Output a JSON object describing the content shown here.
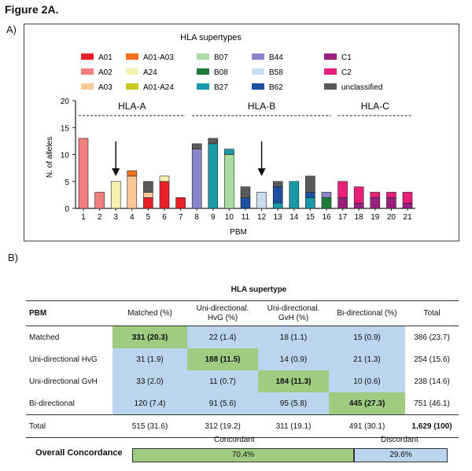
{
  "figure_title": "Figure 2A.",
  "panel_a_label": "A)",
  "panel_b_label": "B)",
  "colors": {
    "A01": "#e8202a",
    "A02": "#f08080",
    "A03": "#fac896",
    "A01-A03": "#f07020",
    "A24": "#f6f0b0",
    "A01-A24": "#c8c820",
    "B07": "#a8dca0",
    "B08": "#1f7a3a",
    "B27": "#1a9aa8",
    "B44": "#8a84c8",
    "B58": "#c8def0",
    "B62": "#1f4fa0",
    "C1": "#9a2080",
    "C2": "#e8207a",
    "unclassified": "#5a5a5a"
  },
  "chart_data": {
    "type": "stacked-bar",
    "legend_title": "HLA supertypes",
    "legend": [
      [
        "A01",
        "A02",
        "A03"
      ],
      [
        "A01-A03",
        "A24",
        "A01-A24"
      ],
      [
        "B07",
        "B08",
        "B27"
      ],
      [
        "B44",
        "B58",
        "B62"
      ],
      [
        "C1",
        "C2",
        "unclassified"
      ]
    ],
    "xlabel": "PBM",
    "ylabel": "N. of alleles",
    "ylim": [
      0,
      20
    ],
    "yticks": [
      0,
      5,
      10,
      15,
      20
    ],
    "groups": [
      {
        "label": "HLA-A",
        "from": 1,
        "to": 7
      },
      {
        "label": "HLA-B",
        "from": 8,
        "to": 16
      },
      {
        "label": "HLA-C",
        "from": 17,
        "to": 21
      }
    ],
    "arrows": [
      3,
      12
    ],
    "bars": [
      {
        "x": "1",
        "stack": [
          [
            "A02",
            13
          ]
        ]
      },
      {
        "x": "2",
        "stack": [
          [
            "A02",
            3
          ]
        ]
      },
      {
        "x": "3",
        "stack": [
          [
            "A24",
            5
          ]
        ]
      },
      {
        "x": "4",
        "stack": [
          [
            "A03",
            6
          ],
          [
            "A01-A03",
            1
          ]
        ]
      },
      {
        "x": "5",
        "stack": [
          [
            "A01",
            2
          ],
          [
            "A03",
            1
          ],
          [
            "unclassified",
            2
          ]
        ]
      },
      {
        "x": "6",
        "stack": [
          [
            "A01",
            5
          ],
          [
            "A24",
            1
          ]
        ]
      },
      {
        "x": "7",
        "stack": [
          [
            "A01",
            2
          ]
        ]
      },
      {
        "x": "8",
        "stack": [
          [
            "B44",
            11
          ],
          [
            "unclassified",
            1
          ]
        ]
      },
      {
        "x": "9",
        "stack": [
          [
            "B27",
            12
          ],
          [
            "unclassified",
            1
          ]
        ]
      },
      {
        "x": "10",
        "stack": [
          [
            "B07",
            10
          ],
          [
            "B27",
            1
          ]
        ]
      },
      {
        "x": "11",
        "stack": [
          [
            "B62",
            2
          ],
          [
            "unclassified",
            2
          ]
        ]
      },
      {
        "x": "12",
        "stack": [
          [
            "B58",
            3
          ]
        ]
      },
      {
        "x": "13",
        "stack": [
          [
            "B27",
            1
          ],
          [
            "B62",
            3
          ],
          [
            "unclassified",
            1
          ]
        ]
      },
      {
        "x": "14",
        "stack": [
          [
            "B27",
            5
          ]
        ]
      },
      {
        "x": "15",
        "stack": [
          [
            "B27",
            2
          ],
          [
            "B62",
            1
          ],
          [
            "unclassified",
            3
          ]
        ]
      },
      {
        "x": "16",
        "stack": [
          [
            "B08",
            2
          ],
          [
            "B44",
            1
          ]
        ]
      },
      {
        "x": "17",
        "stack": [
          [
            "C1",
            2
          ],
          [
            "C2",
            3
          ]
        ]
      },
      {
        "x": "18",
        "stack": [
          [
            "C1",
            1
          ],
          [
            "C2",
            3
          ]
        ]
      },
      {
        "x": "19",
        "stack": [
          [
            "C1",
            2
          ],
          [
            "C2",
            1
          ]
        ]
      },
      {
        "x": "20",
        "stack": [
          [
            "C1",
            2
          ],
          [
            "C2",
            1
          ]
        ]
      },
      {
        "x": "21",
        "stack": [
          [
            "C1",
            1
          ],
          [
            "C2",
            2
          ]
        ]
      }
    ]
  },
  "table": {
    "supertype_header": "HLA supertype",
    "corner": "PBM",
    "columns": [
      [
        "Matched (%)"
      ],
      [
        "Uni-directional.",
        "HvG (%)"
      ],
      [
        "Uni-directional.",
        "GvH (%)"
      ],
      [
        "Bi-directional (%)"
      ],
      [
        "Total"
      ]
    ],
    "rows": [
      {
        "label": "Matched",
        "cells": [
          "331 (20.3)",
          "22 (1.4)",
          "18 (1.1)",
          "15 (0.9)",
          "386 (23.7)"
        ]
      },
      {
        "label": "Uni-directional HvG",
        "cells": [
          "31 (1.9)",
          "188 (11.5)",
          "14 (0.9)",
          "21 (1.3)",
          "254 (15.6)"
        ]
      },
      {
        "label": "Uni-directional GvH",
        "cells": [
          "33 (2.0)",
          "11 (0.7)",
          "184 (11.3)",
          "10 (0.6)",
          "238 (14.6)"
        ]
      },
      {
        "label": "Bi-directional",
        "cells": [
          "120 (7.4)",
          "91 (5.6)",
          "95 (5.8)",
          "445 (27.3)",
          "751 (46.1)"
        ]
      }
    ],
    "total_row": {
      "label": "Total",
      "cells": [
        "515 (31.6)",
        "312 (19.2)",
        "311 (19.1)",
        "491 (30.1)",
        "1,629 (100)"
      ]
    }
  },
  "concordance": {
    "label": "Overall Concordance",
    "concordant_label": "Concordant",
    "discordant_label": "Discordant",
    "concordant_pct": 70.4,
    "discordant_pct": 29.6,
    "concordant_text": "70.4%",
    "discordant_text": "29.6%"
  }
}
